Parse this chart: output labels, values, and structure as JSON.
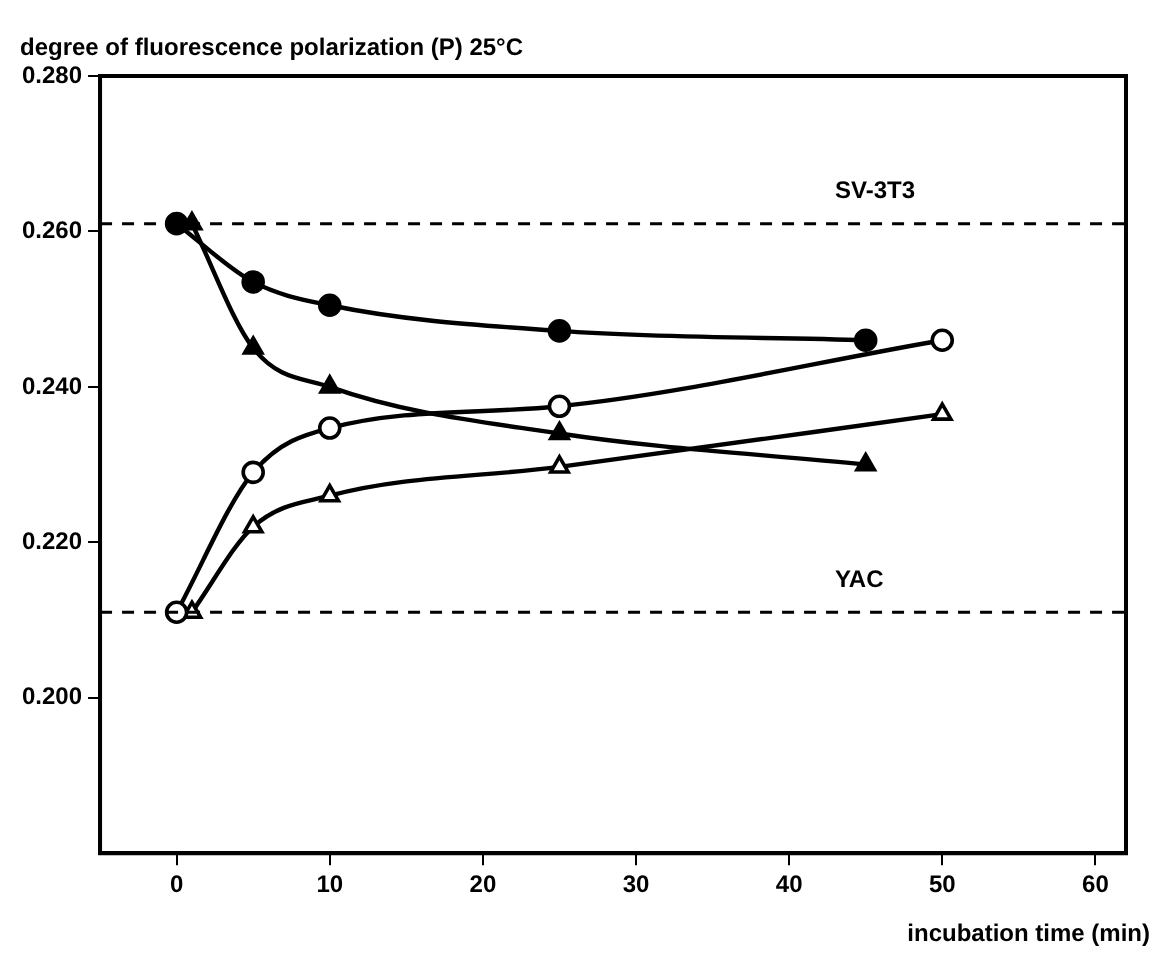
{
  "chart_data": {
    "type": "line",
    "ylabel": "degree of fluorescence polarization (P) 25°C",
    "xlabel": "incubation time (min)",
    "xlim": [
      -5,
      62
    ],
    "xticks": [
      0,
      10,
      20,
      30,
      40,
      50,
      60
    ],
    "ylim": [
      0.18,
      0.28
    ],
    "yticks": [
      {
        "value": 0.2,
        "label": "0.200"
      },
      {
        "value": 0.22,
        "label": "0.220"
      },
      {
        "value": 0.24,
        "label": "0.240"
      },
      {
        "value": 0.26,
        "label": "0.260"
      },
      {
        "value": 0.28,
        "label": "0.280"
      }
    ],
    "grid": false,
    "legend": false,
    "line_style": "solid",
    "series": [
      {
        "color": "#000000",
        "marker": "circle",
        "x": [
          0,
          5,
          10,
          25,
          45
        ],
        "values": [
          0.261,
          0.2535,
          0.2505,
          0.2472,
          0.246
        ]
      },
      {
        "color": "#000000",
        "marker": "triangle",
        "x": [
          1,
          5,
          10,
          25,
          45
        ],
        "values": [
          0.261,
          0.245,
          0.24,
          0.234,
          0.23
        ]
      },
      {
        "color": "#ffffff",
        "marker": "circle",
        "x": [
          0,
          5,
          10,
          25,
          50
        ],
        "values": [
          0.211,
          0.229,
          0.2347,
          0.2375,
          0.246
        ]
      },
      {
        "color": "#ffffff",
        "marker": "triangle",
        "x": [
          1,
          5,
          10,
          25,
          50
        ],
        "values": [
          0.211,
          0.222,
          0.226,
          0.2297,
          0.2365
        ]
      }
    ],
    "ref_lines": [
      {
        "axis": "y",
        "value": 0.261,
        "label": "SV-3T3",
        "line_style": "dashed"
      },
      {
        "axis": "y",
        "value": 0.211,
        "label": "YAC",
        "line_style": "dashed"
      }
    ]
  }
}
